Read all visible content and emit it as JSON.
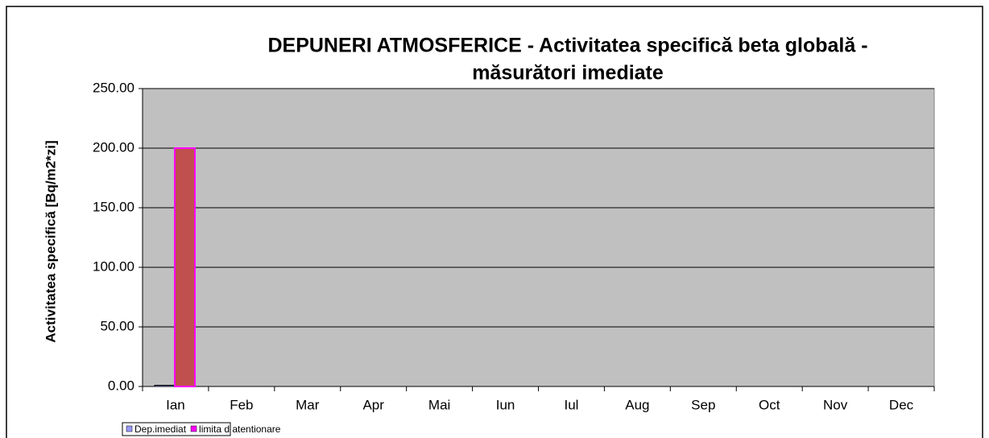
{
  "chart_data": {
    "type": "bar",
    "title": "DEPUNERI ATMOSFERICE - Activitatea  specifică beta globală -",
    "subtitle": "măsurători imediate",
    "y_label": "Activitatea specifică [Bq/m2*zi]",
    "categories": [
      "Ian",
      "Feb",
      "Mar",
      "Apr",
      "Mai",
      "Iun",
      "Iul",
      "Aug",
      "Sep",
      "Oct",
      "Nov",
      "Dec"
    ],
    "series": [
      {
        "name": "Dep.imediat",
        "color": "#9999ff",
        "values": [
          1,
          null,
          null,
          null,
          null,
          null,
          null,
          null,
          null,
          null,
          null,
          null
        ]
      },
      {
        "name": "limita d atentionare",
        "color": "#c0504d",
        "border_color": "#ff00ff",
        "values": [
          200,
          null,
          null,
          null,
          null,
          null,
          null,
          null,
          null,
          null,
          null,
          null
        ]
      }
    ],
    "ylim": [
      0,
      250
    ],
    "yticks": [
      {
        "value": 0,
        "label": "0.00"
      },
      {
        "value": 50,
        "label": "50.00"
      },
      {
        "value": 100,
        "label": "100.00"
      },
      {
        "value": 150,
        "label": "150.00"
      },
      {
        "value": 200,
        "label": "200.00"
      },
      {
        "value": 250,
        "label": "250.00"
      }
    ],
    "grid": true,
    "plot_background": "#c0c0c0",
    "legend_position": "bottom-left"
  }
}
